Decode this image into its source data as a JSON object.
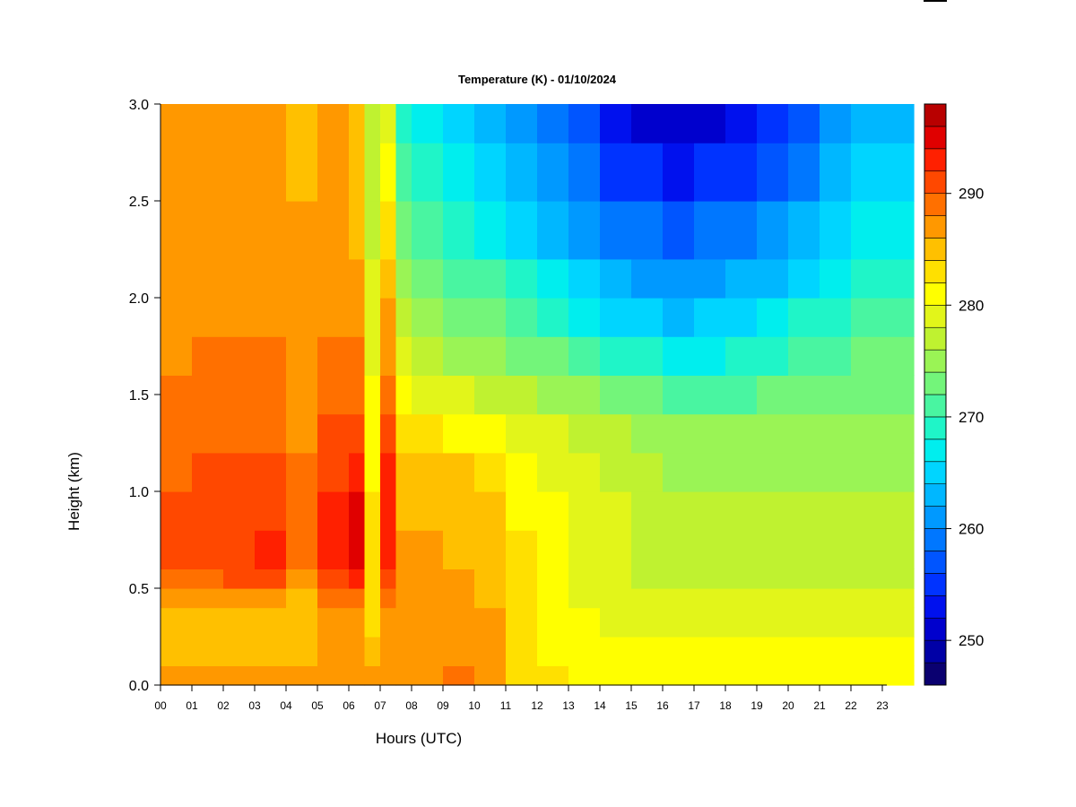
{
  "chart_data": {
    "type": "heatmap",
    "title": "Temperature (K) - 01/10/2024",
    "xlabel": "Hours (UTC)",
    "ylabel": "Height (km)",
    "x_ticks": [
      "00",
      "01",
      "02",
      "03",
      "04",
      "05",
      "06",
      "07",
      "08",
      "09",
      "10",
      "11",
      "12",
      "13",
      "14",
      "15",
      "16",
      "17",
      "18",
      "19",
      "20",
      "21",
      "22",
      "23"
    ],
    "xlim": [
      0,
      24
    ],
    "y_ticks": [
      "0.0",
      "0.5",
      "1.0",
      "1.5",
      "2.0",
      "2.5",
      "3.0"
    ],
    "ylim": [
      0,
      3
    ],
    "colorbar": {
      "ticks": [
        "250",
        "260",
        "270",
        "280",
        "290"
      ],
      "tick_values": [
        250,
        260,
        270,
        280,
        290
      ],
      "range": [
        246,
        298
      ],
      "levels": [
        246,
        248,
        250,
        252,
        254,
        256,
        258,
        260,
        262,
        264,
        266,
        268,
        270,
        272,
        274,
        276,
        278,
        280,
        282,
        284,
        286,
        288,
        290,
        292,
        294,
        296,
        298
      ],
      "colors": [
        "#0a0070",
        "#0000a6",
        "#0000cd",
        "#0011ee",
        "#0033ff",
        "#0055ff",
        "#0077ff",
        "#0099ff",
        "#00b7ff",
        "#00d5ff",
        "#00eeee",
        "#1ff5c8",
        "#49f5a1",
        "#73f57a",
        "#9af455",
        "#bff230",
        "#e2f51a",
        "#ffff00",
        "#ffe000",
        "#ffc000",
        "#ff9800",
        "#ff7000",
        "#ff4800",
        "#ff2000",
        "#e00000",
        "#b80000",
        "#8a0000"
      ]
    },
    "heights_km": [
      0.0,
      0.1,
      0.25,
      0.4,
      0.5,
      0.6,
      0.8,
      1.0,
      1.2,
      1.4,
      1.6,
      1.8,
      2.0,
      2.2,
      2.5,
      2.8,
      3.0
    ],
    "series": [
      {
        "hour": 0,
        "values": [
          287,
          286,
          285,
          284,
          288,
          290,
          290,
          290,
          289,
          288,
          288,
          287,
          287,
          286,
          286,
          286,
          286
        ]
      },
      {
        "hour": 1,
        "values": [
          287,
          286,
          285,
          285,
          288,
          291,
          291,
          291,
          290,
          289,
          288,
          288,
          287,
          287,
          286,
          286,
          286
        ]
      },
      {
        "hour": 2,
        "values": [
          287,
          286,
          285,
          285,
          289,
          291,
          291,
          291,
          290,
          289,
          288,
          288,
          287,
          287,
          286,
          286,
          286
        ]
      },
      {
        "hour": 3,
        "values": [
          287,
          286,
          285,
          285,
          289,
          292,
          292,
          291,
          290,
          289,
          288,
          288,
          287,
          287,
          286,
          286,
          286
        ]
      },
      {
        "hour": 4,
        "values": [
          287,
          286,
          285,
          283,
          286,
          288,
          288,
          288,
          288,
          287,
          287,
          287,
          286,
          286,
          286,
          285,
          285
        ]
      },
      {
        "hour": 5,
        "values": [
          288,
          287,
          286,
          286,
          290,
          293,
          293,
          292,
          291,
          290,
          289,
          288,
          287,
          287,
          286,
          286,
          286
        ]
      },
      {
        "hour": 6,
        "values": [
          288,
          287,
          286,
          287,
          290,
          294,
          295,
          294,
          292,
          290,
          289,
          288,
          287,
          286,
          285,
          284,
          284
        ]
      },
      {
        "hour": 6.5,
        "values": [
          287,
          286,
          284,
          283,
          284,
          283,
          283,
          282,
          281,
          280,
          280,
          279,
          278,
          278,
          277,
          277,
          277
        ]
      },
      {
        "hour": 7,
        "values": [
          288,
          287,
          286,
          286,
          290,
          293,
          294,
          293,
          291,
          290,
          288,
          287,
          286,
          284,
          282,
          280,
          279
        ]
      },
      {
        "hour": 7.5,
        "values": [
          288,
          287,
          286,
          286,
          286,
          286,
          286,
          285,
          284,
          282,
          279,
          277,
          275,
          273,
          271,
          270,
          269
        ]
      },
      {
        "hour": 8,
        "values": [
          288,
          287,
          286,
          286,
          286,
          286,
          286,
          285,
          283,
          281,
          277,
          275,
          273,
          271,
          269,
          268,
          267
        ]
      },
      {
        "hour": 9,
        "values": [
          289,
          288,
          287,
          286,
          286,
          286,
          285,
          285,
          283,
          280,
          277,
          274,
          272,
          270,
          268,
          266,
          265
        ]
      },
      {
        "hour": 10,
        "values": [
          288,
          287,
          286,
          286,
          285,
          285,
          285,
          284,
          282,
          279,
          276,
          273,
          271,
          269,
          266,
          264,
          263
        ]
      },
      {
        "hour": 11,
        "values": [
          284,
          283,
          283,
          283,
          282,
          282,
          282,
          281,
          280,
          278,
          275,
          272,
          270,
          267,
          264,
          262,
          261
        ]
      },
      {
        "hour": 12,
        "values": [
          283,
          282,
          281,
          281,
          280,
          280,
          280,
          280,
          279,
          277,
          274,
          271,
          268,
          265,
          262,
          260,
          258
        ]
      },
      {
        "hour": 13,
        "values": [
          282,
          281,
          280,
          280,
          279,
          279,
          279,
          279,
          278,
          276,
          273,
          269,
          266,
          263,
          259,
          257,
          255
        ]
      },
      {
        "hour": 14,
        "values": [
          282,
          281,
          280,
          279,
          278,
          278,
          278,
          278,
          277,
          275,
          271,
          267,
          264,
          261,
          257,
          254,
          252
        ]
      },
      {
        "hour": 15,
        "values": [
          282,
          281,
          280,
          279,
          278,
          277,
          277,
          277,
          276,
          274,
          270,
          266,
          263,
          260,
          256,
          253,
          250
        ]
      },
      {
        "hour": 16,
        "values": [
          282,
          281,
          280,
          279,
          278,
          277,
          277,
          276,
          275,
          273,
          269,
          265,
          262,
          259,
          255,
          251,
          249
        ]
      },
      {
        "hour": 17,
        "values": [
          282,
          281,
          280,
          279,
          278,
          277,
          277,
          276,
          275,
          273,
          269,
          266,
          263,
          260,
          256,
          252,
          250
        ]
      },
      {
        "hour": 18,
        "values": [
          282,
          281,
          280,
          279,
          278,
          277,
          276,
          276,
          275,
          273,
          270,
          267,
          264,
          261,
          257,
          254,
          252
        ]
      },
      {
        "hour": 19,
        "values": [
          282,
          281,
          280,
          279,
          278,
          277,
          276,
          276,
          275,
          273,
          271,
          268,
          265,
          262,
          259,
          256,
          254
        ]
      },
      {
        "hour": 20,
        "values": [
          282,
          281,
          280,
          279,
          278,
          277,
          276,
          276,
          275,
          274,
          272,
          269,
          267,
          264,
          261,
          258,
          256
        ]
      },
      {
        "hour": 21,
        "values": [
          282,
          281,
          280,
          279,
          278,
          277,
          276,
          276,
          275,
          274,
          272,
          270,
          268,
          266,
          263,
          261,
          259
        ]
      },
      {
        "hour": 22,
        "values": [
          282,
          281,
          280,
          279,
          278,
          277,
          276,
          276,
          275,
          274,
          273,
          271,
          269,
          267,
          265,
          263,
          261
        ]
      },
      {
        "hour": 23,
        "values": [
          282,
          281,
          280,
          279,
          278,
          277,
          276,
          276,
          275,
          274,
          273,
          271,
          269,
          267,
          265,
          263,
          262
        ]
      },
      {
        "hour": 24,
        "values": [
          282,
          281,
          280,
          279,
          278,
          277,
          276,
          276,
          275,
          274,
          273,
          271,
          270,
          268,
          266,
          264,
          263
        ]
      }
    ],
    "grid": false,
    "legend": "colorbar-right"
  }
}
